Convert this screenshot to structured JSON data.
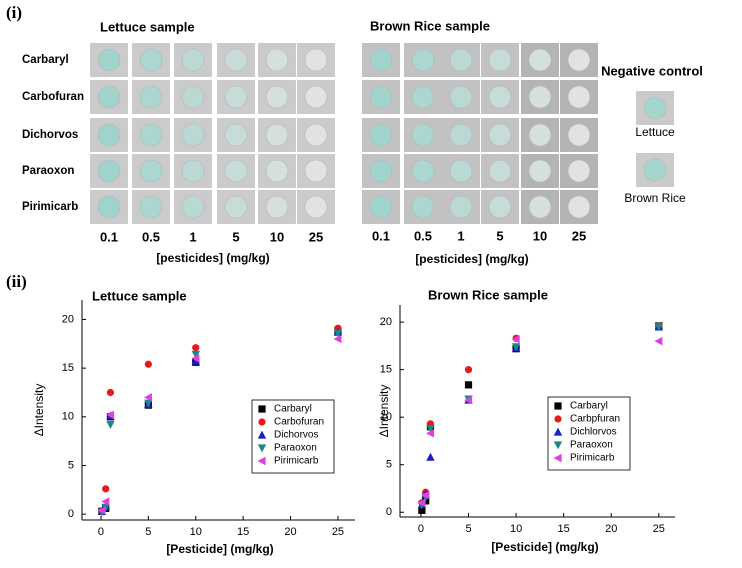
{
  "panel_i": {
    "label": "(i)",
    "lettuce": {
      "title": "Lettuce sample",
      "rows": [
        "Carbaryl",
        "Carbofuran",
        "Dichorvos",
        "Paraoxon",
        "Pirimicarb"
      ],
      "columns": [
        "0.1",
        "0.5",
        "1",
        "5",
        "10",
        "25"
      ],
      "x_label": "[pesticides] (mg/kg)"
    },
    "brown_rice": {
      "title": "Brown Rice sample",
      "columns": [
        "0.1",
        "0.5",
        "1",
        "5",
        "10",
        "25"
      ],
      "x_label": "[pesticides] (mg/kg)"
    },
    "negative_control": {
      "title": "Negative  control",
      "labels": [
        "Lettuce",
        "Brown Rice"
      ]
    }
  },
  "panel_ii": {
    "label": "(ii)"
  },
  "chart_data": [
    {
      "type": "scatter",
      "title": "Lettuce sample",
      "x_label": "[Pesticide] (mg/kg)",
      "y_label": "ΔIntensity",
      "x": [
        0.1,
        0.5,
        1,
        5,
        10,
        25
      ],
      "xlim": [
        -2,
        26.8
      ],
      "xticks": [
        0,
        5,
        10,
        15,
        20,
        25
      ],
      "ylim": [
        -0.6,
        22
      ],
      "yticks": [
        0,
        5,
        10,
        15,
        20
      ],
      "legend": "right",
      "series": [
        {
          "name": "Carbaryl",
          "color": "#000000",
          "marker": "square",
          "values": [
            0.3,
            0.6,
            10.0,
            11.2,
            15.6,
            18.8
          ]
        },
        {
          "name": "Carbofuran",
          "color": "#e8191c",
          "marker": "circle",
          "values": [
            0.3,
            2.6,
            12.5,
            15.4,
            17.1,
            19.1
          ]
        },
        {
          "name": "Dichorvos",
          "color": "#1c1cc8",
          "marker": "triangle-up",
          "values": [
            0.3,
            0.8,
            10.1,
            11.3,
            15.7,
            18.7
          ]
        },
        {
          "name": "Paraoxon",
          "color": "#178a8a",
          "marker": "triangle-down",
          "values": [
            0.2,
            0.7,
            9.2,
            11.4,
            16.4,
            18.6
          ]
        },
        {
          "name": "Pirimicarb",
          "color": "#e23ee2",
          "marker": "triangle-left",
          "values": [
            0.4,
            1.3,
            10.2,
            12.0,
            16.0,
            18.0
          ]
        }
      ]
    },
    {
      "type": "scatter",
      "title": "Brown Rice sample",
      "x_label": "[Pesticide] (mg/kg)",
      "y_label": "ΔIntensity",
      "x": [
        0.1,
        0.5,
        1,
        5,
        10,
        25
      ],
      "xlim": [
        -2.2,
        26.7
      ],
      "xticks": [
        0,
        5,
        10,
        15,
        20,
        25
      ],
      "ylim": [
        -0.5,
        21.8
      ],
      "yticks": [
        0,
        5,
        10,
        15,
        20
      ],
      "legend": "right",
      "series": [
        {
          "name": "Carbaryl",
          "color": "#000000",
          "marker": "square",
          "values": [
            0.2,
            1.2,
            9.0,
            13.4,
            17.2,
            19.6
          ]
        },
        {
          "name": "Carbpfuran",
          "color": "#e8191c",
          "marker": "circle",
          "values": [
            1.0,
            2.1,
            9.3,
            15.0,
            18.3,
            19.6
          ]
        },
        {
          "name": "Dichlorvos",
          "color": "#1c1cc8",
          "marker": "triangle-up",
          "values": [
            0.8,
            1.9,
            5.8,
            11.8,
            17.3,
            19.5
          ]
        },
        {
          "name": "Paraoxon",
          "color": "#178a8a",
          "marker": "triangle-down",
          "values": [
            0.8,
            1.6,
            8.8,
            11.9,
            17.4,
            19.5
          ]
        },
        {
          "name": "Pirimicarb",
          "color": "#e23ee2",
          "marker": "triangle-left",
          "values": [
            1.0,
            1.8,
            8.3,
            11.8,
            18.2,
            18.0
          ]
        }
      ]
    }
  ]
}
